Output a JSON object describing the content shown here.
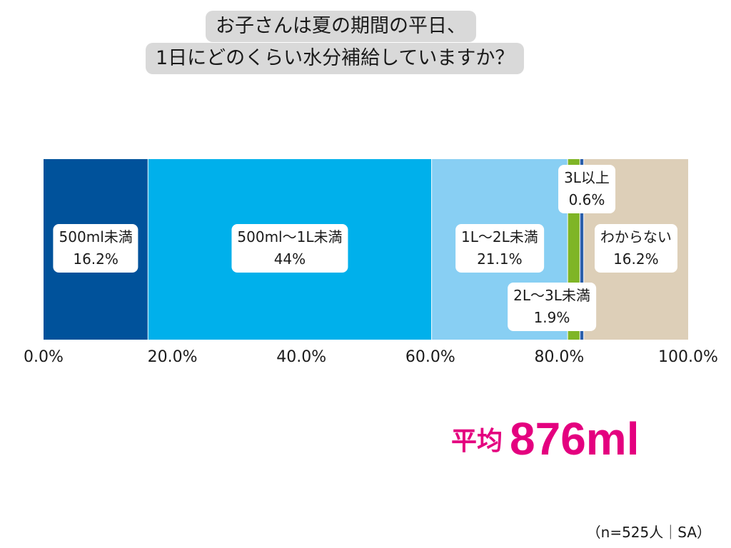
{
  "title": {
    "line1": "お子さんは夏の期間の平日、",
    "line2": "1日にどのくらい水分補給していますか？"
  },
  "chart_data": {
    "type": "bar",
    "orientation": "horizontal-stacked-100",
    "title": "お子さんは夏の期間の平日、1日にどのくらい水分補給していますか？",
    "xlim": [
      0,
      100
    ],
    "x_ticks": [
      "0.0%",
      "20.0%",
      "40.0%",
      "60.0%",
      "80.0%",
      "100.0%"
    ],
    "segments": [
      {
        "name": "500ml未満",
        "value": 16.2,
        "label": "16.2%",
        "color": "#00529b"
      },
      {
        "name": "500ml〜1L未満",
        "value": 44,
        "label": "44%",
        "color": "#00b0eb"
      },
      {
        "name": "1L〜2L未満",
        "value": 21.1,
        "label": "21.1%",
        "color": "#88cff3"
      },
      {
        "name": "2L〜3L未満",
        "value": 1.9,
        "label": "1.9%",
        "color": "#7fb526"
      },
      {
        "name": "3L以上",
        "value": 0.6,
        "label": "0.6%",
        "color": "#2a5faa"
      },
      {
        "name": "わからない",
        "value": 16.2,
        "label": "16.2%",
        "color": "#ddcfb8"
      }
    ]
  },
  "average": {
    "label": "平均",
    "value": "876ml",
    "color": "#e4007f"
  },
  "sample_note": "（n=525人｜SA）"
}
